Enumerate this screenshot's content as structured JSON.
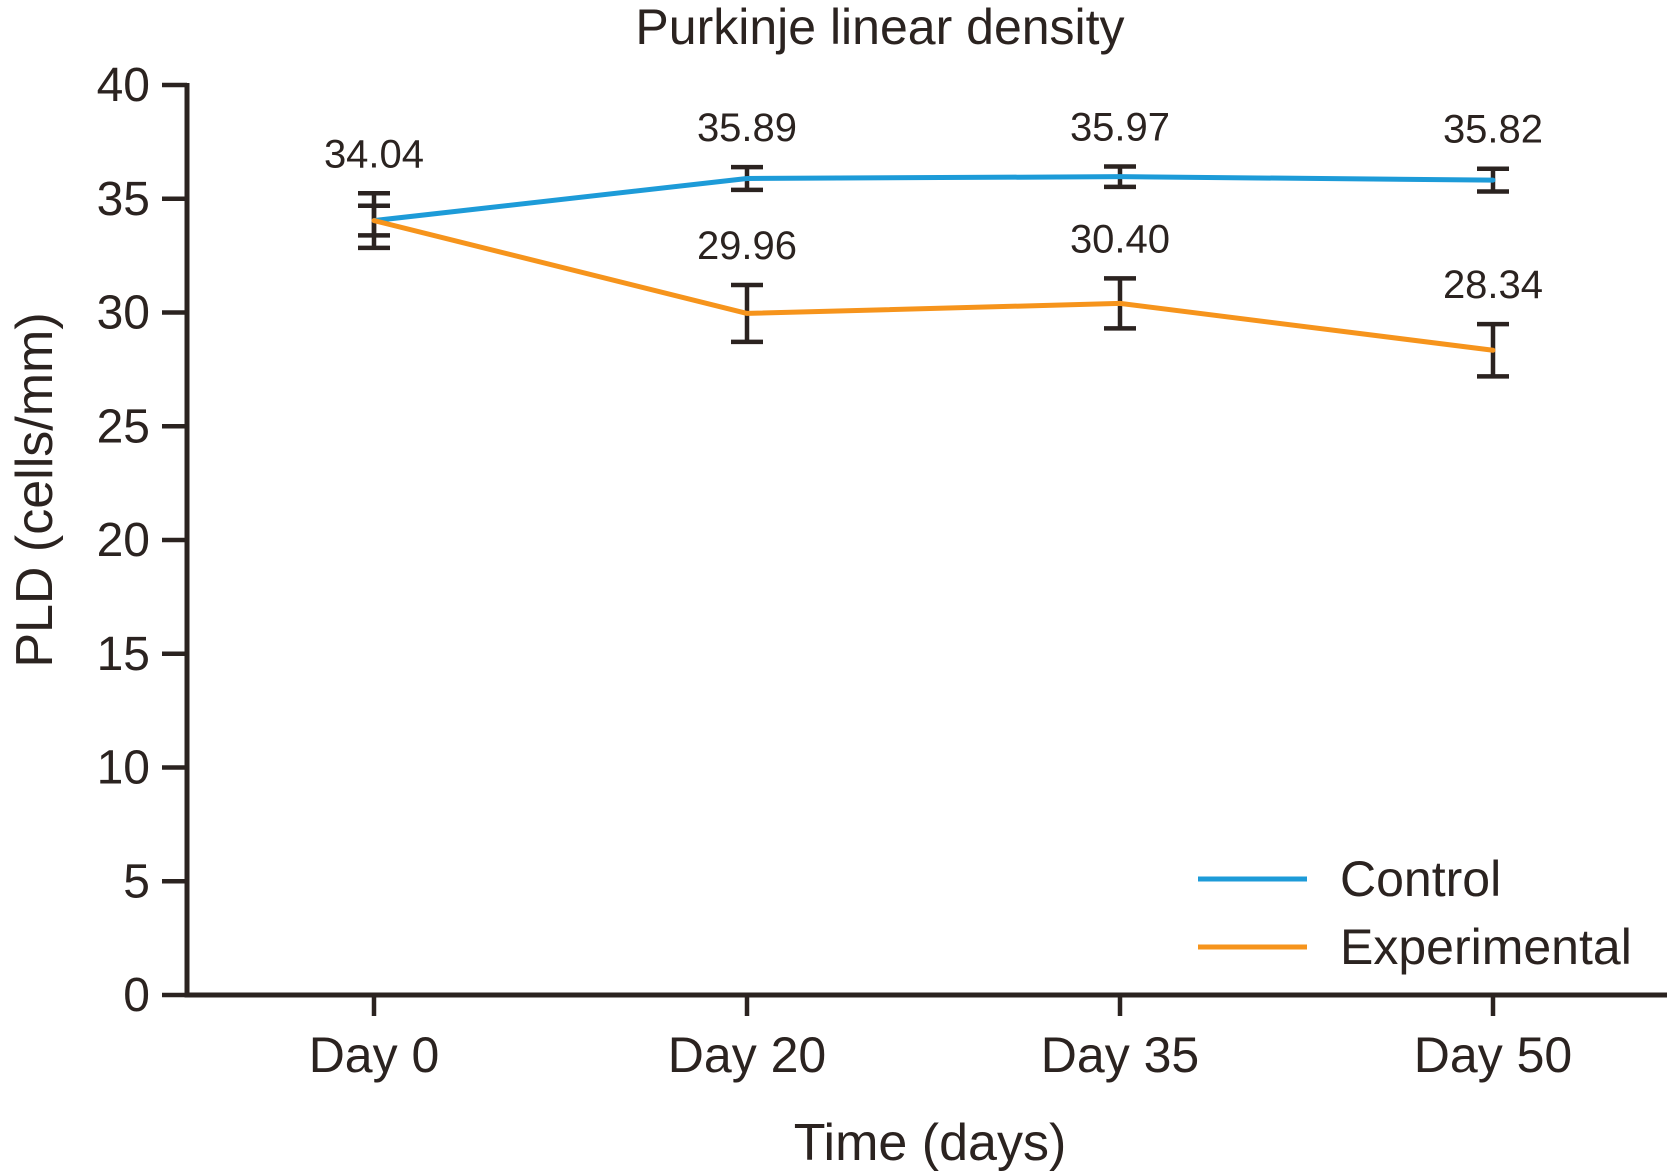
{
  "figure": {
    "background": "#ffffff",
    "text_color": "#2b2320",
    "axis_color": "#2b2320"
  },
  "chart_data": {
    "type": "line",
    "title": "Purkinje linear density",
    "xlabel": "Time (days)",
    "ylabel": "PLD (cells/mm)",
    "categories": [
      "Day 0",
      "Day 20",
      "Day 35",
      "Day 50"
    ],
    "ylim": [
      0,
      40
    ],
    "ytick_step": 5,
    "ytick_labels": [
      "0",
      "5",
      "10",
      "15",
      "20",
      "25",
      "30",
      "35",
      "40"
    ],
    "grid": false,
    "error_bar_color": "#2b2320",
    "legend": {
      "position": "inside-bottom-right",
      "entries": [
        "Control",
        "Experimental"
      ]
    },
    "series": [
      {
        "name": "Control",
        "color": "#1d9bd8",
        "values": [
          34.04,
          35.89,
          35.97,
          35.82
        ],
        "errors": [
          0.65,
          0.5,
          0.45,
          0.5
        ],
        "point_labels": [
          "34.04",
          "35.89",
          "35.97",
          "35.82"
        ]
      },
      {
        "name": "Experimental",
        "color": "#f6941c",
        "values": [
          34.04,
          29.96,
          30.4,
          28.34
        ],
        "errors": [
          1.2,
          1.25,
          1.1,
          1.15
        ],
        "point_labels": [
          null,
          "29.96",
          "30.40",
          "28.34"
        ]
      }
    ]
  }
}
